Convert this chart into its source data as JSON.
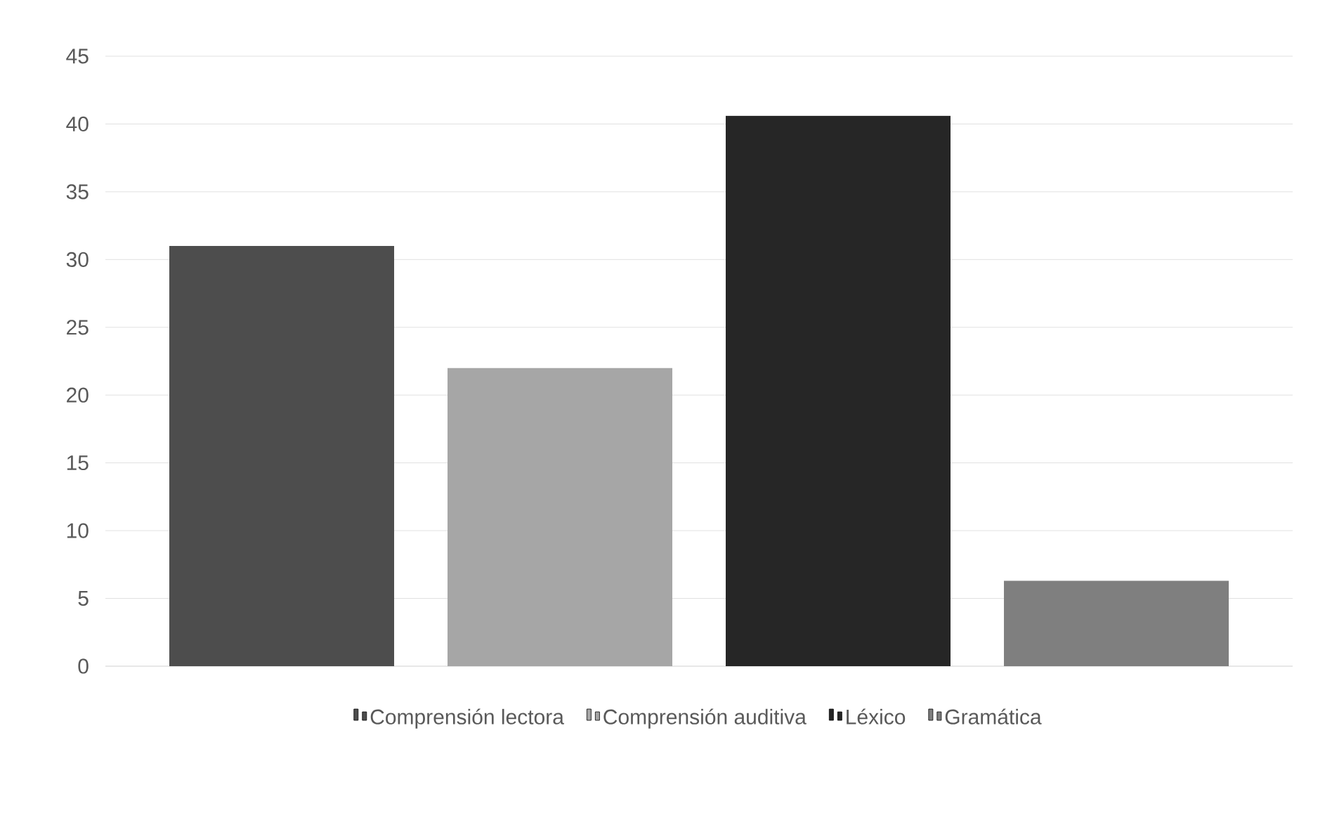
{
  "chart_data": {
    "type": "bar",
    "categories": [
      null
    ],
    "series": [
      {
        "name": "Comprensión lectora",
        "color": "#4d4d4d",
        "values": [
          31
        ]
      },
      {
        "name": "Comprensión auditiva",
        "color": "#a6a6a6",
        "values": [
          22
        ]
      },
      {
        "name": "Léxico",
        "color": "#262626",
        "values": [
          40.6
        ]
      },
      {
        "name": "Gramática",
        "color": "#7f7f7f",
        "values": [
          6.3
        ]
      }
    ],
    "ylim": [
      0,
      45
    ],
    "yticks": [
      0,
      5,
      10,
      15,
      20,
      25,
      30,
      35,
      40,
      45
    ],
    "grid": "y",
    "legend": "bottom"
  }
}
